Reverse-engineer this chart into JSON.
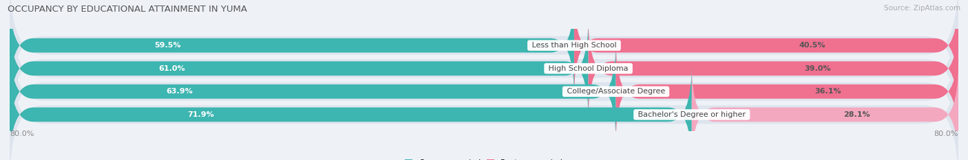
{
  "title": "OCCUPANCY BY EDUCATIONAL ATTAINMENT IN YUMA",
  "source": "Source: ZipAtlas.com",
  "categories": [
    "Less than High School",
    "High School Diploma",
    "College/Associate Degree",
    "Bachelor's Degree or higher"
  ],
  "owner_values": [
    59.5,
    61.0,
    63.9,
    71.9
  ],
  "renter_values": [
    40.5,
    39.0,
    36.1,
    28.1
  ],
  "owner_color": "#3db5b0",
  "renter_colors": [
    "#f07090",
    "#f07090",
    "#f07090",
    "#f4a8c0"
  ],
  "bar_height": 0.62,
  "bg_color": "#eef2f7",
  "bar_bg_color": "#dde4ed",
  "title_fontsize": 9.5,
  "source_fontsize": 7.5,
  "value_fontsize": 8,
  "category_fontsize": 8,
  "legend_fontsize": 8,
  "x_axis_label": "80.0%"
}
